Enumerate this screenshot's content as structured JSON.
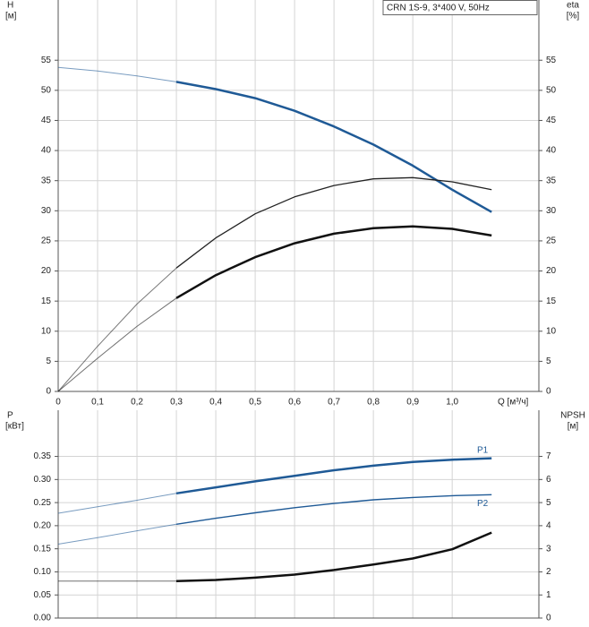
{
  "chart_data": [
    {
      "type": "line",
      "legend_box": "CRN 1S-9, 3*400 V, 50Hz",
      "y_label": "H",
      "y_unit": "[м]",
      "y2_label": "eta",
      "y2_unit": "[%]",
      "x_label": "Q [м³/ч]",
      "x": [
        0,
        0.1,
        0.2,
        0.3,
        0.4,
        0.5,
        0.6,
        0.7,
        0.8,
        0.9,
        1.0,
        1.1
      ],
      "xlim": [
        0,
        1.22
      ],
      "xticks": [
        0,
        {
          "value": 0.1,
          "label": "0,1"
        },
        {
          "value": 0.2,
          "label": "0,2"
        },
        {
          "value": 0.3,
          "label": "0,3"
        },
        {
          "value": 0.4,
          "label": "0,4"
        },
        {
          "value": 0.5,
          "label": "0,5"
        },
        {
          "value": 0.6,
          "label": "0,6"
        },
        {
          "value": 0.7,
          "label": "0,7"
        },
        {
          "value": 0.8,
          "label": "0,8"
        },
        {
          "value": 0.9,
          "label": "0,9"
        },
        {
          "value": 1.0,
          "label": "1,0"
        }
      ],
      "ylim": [
        0,
        65
      ],
      "yticks": [
        0,
        5,
        10,
        15,
        20,
        25,
        30,
        35,
        40,
        45,
        50,
        55
      ],
      "y2lim": [
        0,
        65
      ],
      "y2ticks": [
        0,
        5,
        10,
        15,
        20,
        25,
        30,
        35,
        40,
        45,
        50,
        55
      ],
      "grid": true,
      "thick_from": 0.3,
      "series": [
        {
          "color": "#1f5a96",
          "line_width": 2.5,
          "values": [
            53.8,
            53.2,
            52.4,
            51.4,
            50.2,
            48.7,
            46.6,
            44.0,
            41.0,
            37.5,
            33.5,
            29.8
          ]
        },
        {
          "color": "#222222",
          "line_width": 1.3,
          "axis": "y2",
          "values": [
            0,
            7.5,
            14.5,
            20.5,
            25.5,
            29.5,
            32.3,
            34.2,
            35.3,
            35.5,
            34.8,
            33.5
          ]
        },
        {
          "color": "#111111",
          "line_width": 2.5,
          "axis": "y2",
          "values": [
            0,
            5.5,
            10.8,
            15.5,
            19.3,
            22.3,
            24.6,
            26.2,
            27.1,
            27.4,
            27.0,
            25.9
          ]
        }
      ]
    },
    {
      "type": "line",
      "y_label": "P",
      "y_unit": "[кВт]",
      "y2_label": "NPSH",
      "y2_unit": "[м]",
      "x": [
        0,
        0.1,
        0.2,
        0.3,
        0.4,
        0.5,
        0.6,
        0.7,
        0.8,
        0.9,
        1.0,
        1.1
      ],
      "xlim": [
        0,
        1.22
      ],
      "xticks": [
        0,
        0.1,
        0.2,
        0.3,
        0.4,
        0.5,
        0.6,
        0.7,
        0.8,
        0.9,
        1.0
      ],
      "ylim": [
        0,
        0.45
      ],
      "yticks": [
        {
          "value": 0,
          "label": "0.00"
        },
        {
          "value": 0.05,
          "label": "0.05"
        },
        {
          "value": 0.1,
          "label": "0.10"
        },
        {
          "value": 0.15,
          "label": "0.15"
        },
        {
          "value": 0.2,
          "label": "0.20"
        },
        {
          "value": 0.25,
          "label": "0.25"
        },
        {
          "value": 0.3,
          "label": "0.30"
        },
        {
          "value": 0.35,
          "label": "0.35"
        }
      ],
      "y2lim": [
        0,
        9
      ],
      "y2ticks": [
        0,
        1,
        2,
        3,
        4,
        5,
        6,
        7
      ],
      "grid": true,
      "thick_from": 0.3,
      "series": [
        {
          "name": "P1",
          "color": "#1f5a96",
          "line_width": 2.5,
          "values": [
            0.227,
            0.241,
            0.255,
            0.27,
            0.283,
            0.296,
            0.308,
            0.32,
            0.33,
            0.338,
            0.343,
            0.346
          ]
        },
        {
          "name": "P2",
          "color": "#1f5a96",
          "line_width": 1.4,
          "values": [
            0.16,
            0.174,
            0.189,
            0.203,
            0.216,
            0.228,
            0.239,
            0.248,
            0.256,
            0.261,
            0.265,
            0.267
          ]
        },
        {
          "color": "#111111",
          "line_width": 2.5,
          "axis": "y2",
          "values": [
            1.6,
            1.6,
            1.6,
            1.6,
            1.65,
            1.75,
            1.88,
            2.08,
            2.32,
            2.58,
            2.98,
            3.7
          ]
        }
      ]
    }
  ]
}
